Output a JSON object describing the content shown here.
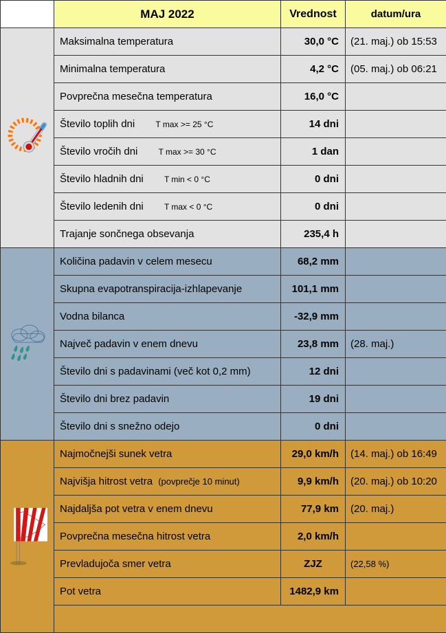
{
  "colors": {
    "header_bg": "#FAFA9E",
    "temperature_bg": "#E2E2E2",
    "precipitation_bg": "#99AEC0",
    "wind_bg": "#D09A3B",
    "border": "#333333"
  },
  "header": {
    "month": "MAJ 2022",
    "value_col": "Vrednost",
    "date_col": "datum/ura"
  },
  "sections": [
    {
      "id": "temperature",
      "icon": "sun-thermometer-icon",
      "rows": [
        {
          "label": "Maksimalna temperatura",
          "value": "30,0 °C",
          "date": "(21. maj.) ob 15:53"
        },
        {
          "label": "Minimalna temperatura",
          "value": "4,2 °C",
          "date": "(05. maj.) ob 06:21"
        },
        {
          "label": "Povprečna mesečna temperatura",
          "value": "16,0 °C",
          "date": ""
        },
        {
          "label": "Število toplih dni",
          "sub": "T max >= 25 °C",
          "sub_type": "condition",
          "value": "14 dni",
          "date": ""
        },
        {
          "label": "Število vročih dni",
          "sub": "T max >= 30 °C",
          "sub_type": "condition",
          "value": "1 dan",
          "date": ""
        },
        {
          "label": "Število hladnih dni",
          "sub": "T min < 0 °C",
          "sub_type": "condition",
          "value": "0 dni",
          "date": ""
        },
        {
          "label": "Število ledenih dni",
          "sub": "T max < 0 °C",
          "sub_type": "condition",
          "value": "0 dni",
          "date": ""
        },
        {
          "label": "Trajanje sončnega obsevanja",
          "value": "235,4 h",
          "date": ""
        }
      ]
    },
    {
      "id": "precipitation",
      "icon": "rain-cloud-icon",
      "rows": [
        {
          "label": "Količina padavin v celem mesecu",
          "value": "68,2 mm",
          "date": ""
        },
        {
          "label": "Skupna evapotranspiracija-izhlapevanje",
          "value": "101,1 mm",
          "date": ""
        },
        {
          "label": "Vodna bilanca",
          "value": "-32,9 mm",
          "date": ""
        },
        {
          "label": "Največ padavin v enem dnevu",
          "value": "23,8 mm",
          "date": "(28. maj.)"
        },
        {
          "label": "Število dni s padavinami (več kot 0,2 mm)",
          "value": "12 dni",
          "date": ""
        },
        {
          "label": "Število dni brez padavin",
          "value": "19 dni",
          "date": ""
        },
        {
          "label": "Število dni s snežno odejo",
          "value": "0 dni",
          "date": ""
        }
      ]
    },
    {
      "id": "wind",
      "icon": "windsock-icon",
      "rows": [
        {
          "label": "Najmočnejši sunek vetra",
          "value": "29,0 km/h",
          "date": "(14. maj.) ob 16:49"
        },
        {
          "label": "Najvišja hitrost vetra",
          "sub": "(povprečje 10 minut)",
          "sub_type": "inline",
          "value": "9,9 km/h",
          "date": "(20. maj.) ob 10:20"
        },
        {
          "label": "Najdaljša pot vetra v enem dnevu",
          "value": "77,9 km",
          "date": "(20. maj.)"
        },
        {
          "label": "Povprečna mesečna hitrost vetra",
          "value": "2,0 km/h",
          "date": ""
        },
        {
          "label": "Prevladujoča smer vetra",
          "value": "ZJZ",
          "value_align": "center",
          "date": "(22,58 %)",
          "date_small": true
        },
        {
          "label": "Pot vetra",
          "value": "1482,9 km",
          "date": ""
        }
      ]
    }
  ]
}
